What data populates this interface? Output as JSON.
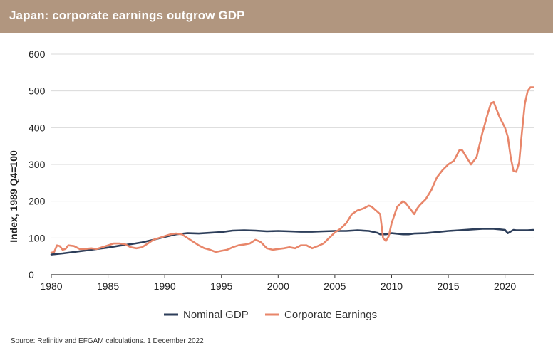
{
  "header": {
    "title": "Japan: corporate earnings outgrow GDP"
  },
  "source": "Source: Refinitiv and EFGAM calculations. 1 December 2022",
  "colors": {
    "banner": "#b1967f",
    "gdp": "#2d3e5a",
    "earnings": "#e8866a",
    "grid": "#d9d9d9"
  },
  "chart_data": {
    "type": "line",
    "title": "Japan: corporate earnings outgrow GDP",
    "xlabel": "",
    "ylabel": "Index, 1989 Q4=100",
    "xlim": [
      1980,
      2022.6
    ],
    "ylim": [
      0,
      600
    ],
    "x_ticks": [
      1980,
      1985,
      1990,
      1995,
      2000,
      2005,
      2010,
      2015,
      2020
    ],
    "y_ticks": [
      0,
      100,
      200,
      300,
      400,
      500,
      600
    ],
    "grid": true,
    "legend": "bottom-center",
    "series": [
      {
        "name": "Nominal GDP",
        "color": "#2d3e5a",
        "x": [
          1980,
          1981,
          1982,
          1983,
          1984,
          1985,
          1986,
          1987,
          1988,
          1989,
          1990,
          1991,
          1992,
          1993,
          1994,
          1995,
          1996,
          1997,
          1998,
          1999,
          2000,
          2001,
          2002,
          2003,
          2004,
          2005,
          2006,
          2007,
          2008,
          2008.75,
          2009,
          2009.5,
          2010,
          2011,
          2011.5,
          2012,
          2013,
          2014,
          2015,
          2016,
          2017,
          2018,
          2019,
          2020,
          2020.25,
          2020.75,
          2021,
          2022,
          2022.5
        ],
        "values": [
          55,
          58,
          62,
          66,
          70,
          74,
          79,
          83,
          88,
          95,
          103,
          110,
          113,
          112,
          114,
          116,
          120,
          121,
          120,
          118,
          119,
          118,
          117,
          117,
          118,
          119,
          119,
          121,
          119,
          114,
          110,
          110,
          113,
          110,
          110,
          112,
          113,
          116,
          119,
          121,
          123,
          125,
          125,
          122,
          113,
          122,
          121,
          121,
          122
        ]
      },
      {
        "name": "Corporate Earnings",
        "color": "#e8866a",
        "x": [
          1980,
          1980.25,
          1980.5,
          1980.75,
          1981,
          1981.25,
          1981.5,
          1982,
          1982.5,
          1983,
          1983.5,
          1984,
          1984.5,
          1985,
          1985.5,
          1986,
          1986.5,
          1987,
          1987.5,
          1988,
          1988.5,
          1989,
          1989.5,
          1990,
          1990.5,
          1991,
          1991.5,
          1992,
          1992.5,
          1993,
          1993.5,
          1994,
          1994.5,
          1995,
          1995.5,
          1996,
          1996.5,
          1997,
          1997.5,
          1998,
          1998.25,
          1998.5,
          1999,
          1999.5,
          2000,
          2000.5,
          2001,
          2001.5,
          2002,
          2002.5,
          2003,
          2003.5,
          2004,
          2004.5,
          2005,
          2005.5,
          2006,
          2006.5,
          2007,
          2007.5,
          2008,
          2008.25,
          2008.5,
          2009,
          2009.25,
          2009.5,
          2009.75,
          2010,
          2010.5,
          2011,
          2011.25,
          2011.5,
          2012,
          2012.25,
          2012.5,
          2013,
          2013.5,
          2014,
          2014.5,
          2015,
          2015.5,
          2016,
          2016.25,
          2016.5,
          2017,
          2017.5,
          2018,
          2018.5,
          2018.75,
          2019,
          2019.5,
          2020,
          2020.25,
          2020.5,
          2020.75,
          2021,
          2021.25,
          2021.5,
          2021.75,
          2022,
          2022.25,
          2022.5
        ],
        "values": [
          60,
          62,
          80,
          78,
          68,
          70,
          80,
          78,
          70,
          70,
          72,
          70,
          75,
          80,
          85,
          85,
          83,
          75,
          72,
          75,
          85,
          95,
          100,
          105,
          110,
          112,
          110,
          100,
          90,
          80,
          72,
          68,
          62,
          65,
          68,
          75,
          80,
          82,
          85,
          95,
          92,
          88,
          72,
          68,
          70,
          72,
          75,
          72,
          80,
          80,
          72,
          78,
          85,
          100,
          115,
          125,
          140,
          165,
          175,
          180,
          188,
          185,
          178,
          165,
          100,
          92,
          105,
          140,
          185,
          200,
          195,
          185,
          165,
          180,
          190,
          205,
          230,
          265,
          285,
          300,
          310,
          340,
          338,
          325,
          300,
          320,
          385,
          440,
          465,
          470,
          430,
          400,
          375,
          320,
          282,
          280,
          305,
          390,
          465,
          500,
          510,
          510
        ]
      }
    ]
  }
}
